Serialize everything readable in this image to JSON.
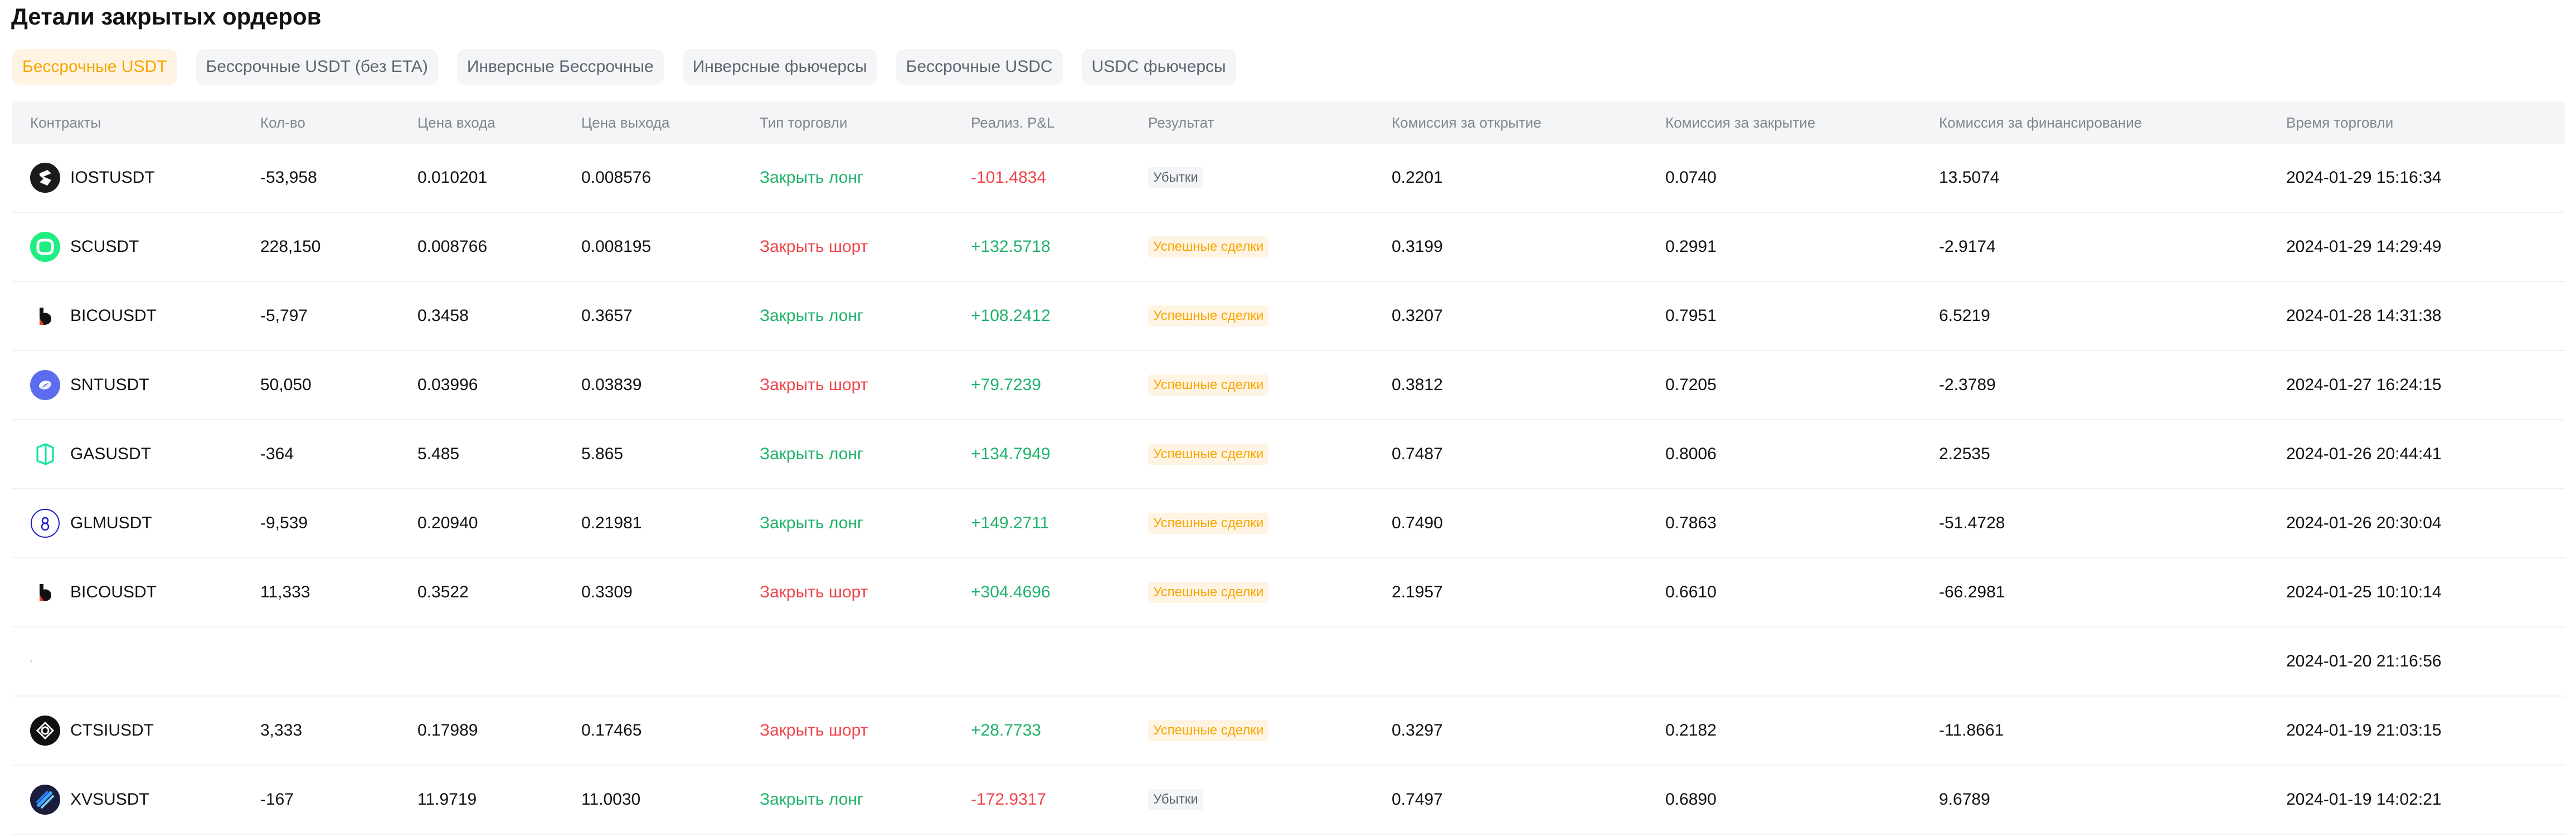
{
  "page_title": "Детали закрытых ордеров",
  "tabs": [
    {
      "label": "Бессрочные USDT",
      "active": true
    },
    {
      "label": "Бессрочные USDT (без ETA)",
      "active": false
    },
    {
      "label": "Инверсные Бессрочные",
      "active": false
    },
    {
      "label": "Инверсные фьючерсы",
      "active": false
    },
    {
      "label": "Бессрочные USDC",
      "active": false
    },
    {
      "label": "USDC фьючерсы",
      "active": false
    }
  ],
  "columns": [
    "Контракты",
    "Кол-во",
    "Цена входа",
    "Цена выхода",
    "Тип торговли",
    "Реализ. P&L",
    "Результат",
    "Комиссия за открытие",
    "Комиссия за закрытие",
    "Комиссия за финансирование",
    "Время торговли"
  ],
  "rows": [
    {
      "icon": "iost-icon",
      "contract": "IOSTUSDT",
      "qty": "-53,958",
      "entry": "0.010201",
      "exit": "0.008576",
      "type": "Закрыть лонг",
      "type_color": "green",
      "pnl": "-101.4834",
      "pnl_color": "red",
      "result": "Убытки",
      "result_kind": "loss",
      "fee_open": "0.2201",
      "fee_close": "0.0740",
      "fee_funding": "13.5074",
      "time": "2024-01-29 15:16:34"
    },
    {
      "icon": "sc-icon",
      "contract": "SCUSDT",
      "qty": "228,150",
      "entry": "0.008766",
      "exit": "0.008195",
      "type": "Закрыть шорт",
      "type_color": "red",
      "pnl": "+132.5718",
      "pnl_color": "green",
      "result": "Успешные сделки",
      "result_kind": "win",
      "fee_open": "0.3199",
      "fee_close": "0.2991",
      "fee_funding": "-2.9174",
      "time": "2024-01-29 14:29:49"
    },
    {
      "icon": "bico-icon",
      "contract": "BICOUSDT",
      "qty": "-5,797",
      "entry": "0.3458",
      "exit": "0.3657",
      "type": "Закрыть лонг",
      "type_color": "green",
      "pnl": "+108.2412",
      "pnl_color": "green",
      "result": "Успешные сделки",
      "result_kind": "win",
      "fee_open": "0.3207",
      "fee_close": "0.7951",
      "fee_funding": "6.5219",
      "time": "2024-01-28 14:31:38"
    },
    {
      "icon": "snt-icon",
      "contract": "SNTUSDT",
      "qty": "50,050",
      "entry": "0.03996",
      "exit": "0.03839",
      "type": "Закрыть шорт",
      "type_color": "red",
      "pnl": "+79.7239",
      "pnl_color": "green",
      "result": "Успешные сделки",
      "result_kind": "win",
      "fee_open": "0.3812",
      "fee_close": "0.7205",
      "fee_funding": "-2.3789",
      "time": "2024-01-27 16:24:15"
    },
    {
      "icon": "gas-icon",
      "contract": "GASUSDT",
      "qty": "-364",
      "entry": "5.485",
      "exit": "5.865",
      "type": "Закрыть лонг",
      "type_color": "green",
      "pnl": "+134.7949",
      "pnl_color": "green",
      "result": "Успешные сделки",
      "result_kind": "win",
      "fee_open": "0.7487",
      "fee_close": "0.8006",
      "fee_funding": "2.2535",
      "time": "2024-01-26 20:44:41"
    },
    {
      "icon": "glm-icon",
      "contract": "GLMUSDT",
      "qty": "-9,539",
      "entry": "0.20940",
      "exit": "0.21981",
      "type": "Закрыть лонг",
      "type_color": "green",
      "pnl": "+149.2711",
      "pnl_color": "green",
      "result": "Успешные сделки",
      "result_kind": "win",
      "fee_open": "0.7490",
      "fee_close": "0.7863",
      "fee_funding": "-51.4728",
      "time": "2024-01-26 20:30:04"
    },
    {
      "icon": "bico-icon",
      "contract": "BICOUSDT",
      "qty": "11,333",
      "entry": "0.3522",
      "exit": "0.3309",
      "type": "Закрыть шорт",
      "type_color": "red",
      "pnl": "+304.4696",
      "pnl_color": "green",
      "result": "Успешные сделки",
      "result_kind": "win",
      "fee_open": "2.1957",
      "fee_close": "0.6610",
      "fee_funding": "-66.2981",
      "time": "2024-01-25 10:10:14"
    },
    {
      "icon": "",
      "contract": "",
      "qty": "",
      "entry": "",
      "exit": "",
      "type": "",
      "type_color": "",
      "pnl": "",
      "pnl_color": "",
      "result": "",
      "result_kind": "",
      "fee_open": "",
      "fee_close": "",
      "fee_funding": "",
      "time": "2024-01-20 21:16:56"
    },
    {
      "icon": "ctsi-icon",
      "contract": "CTSIUSDT",
      "qty": "3,333",
      "entry": "0.17989",
      "exit": "0.17465",
      "type": "Закрыть шорт",
      "type_color": "red",
      "pnl": "+28.7733",
      "pnl_color": "green",
      "result": "Успешные сделки",
      "result_kind": "win",
      "fee_open": "0.3297",
      "fee_close": "0.2182",
      "fee_funding": "-11.8661",
      "time": "2024-01-19 21:03:15"
    },
    {
      "icon": "xvs-icon",
      "contract": "XVSUSDT",
      "qty": "-167",
      "entry": "11.9719",
      "exit": "11.0030",
      "type": "Закрыть лонг",
      "type_color": "green",
      "pnl": "-172.9317",
      "pnl_color": "red",
      "result": "Убытки",
      "result_kind": "loss",
      "fee_open": "0.7497",
      "fee_close": "0.6890",
      "fee_funding": "9.6789",
      "time": "2024-01-19 14:02:21"
    }
  ]
}
